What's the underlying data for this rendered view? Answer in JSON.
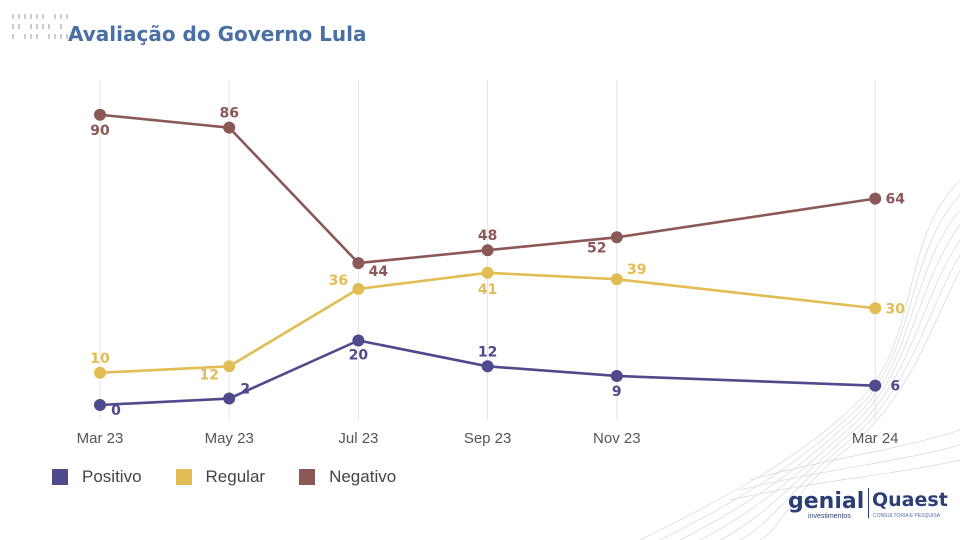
{
  "title": "Avaliação do Governo Lula",
  "logos": {
    "genial": "genial",
    "genial_sub": "investimentos",
    "quaest": "Quaest",
    "quaest_sub": "CONSULTORIA E PESQUISA"
  },
  "chart_data": {
    "type": "line",
    "title": "Avaliação do Governo Lula",
    "xlabel": "",
    "ylabel": "",
    "x": [
      "Mar 23",
      "May 23",
      "Jul 23",
      "Sep 23",
      "Nov 23",
      "Mar 24"
    ],
    "x_months": [
      0,
      2,
      4,
      6,
      8,
      12
    ],
    "ylim": [
      0,
      100
    ],
    "grid": "vertical",
    "legend_position": "bottom-left",
    "series": [
      {
        "name": "Positivo",
        "color": "#4e4a8c",
        "values": [
          0,
          2,
          20,
          12,
          9,
          6
        ]
      },
      {
        "name": "Regular",
        "color": "#e2bd55",
        "values": [
          10,
          12,
          36,
          41,
          39,
          30
        ]
      },
      {
        "name": "Negativo",
        "color": "#8b5857",
        "values": [
          90,
          86,
          44,
          48,
          52,
          64
        ]
      }
    ]
  }
}
